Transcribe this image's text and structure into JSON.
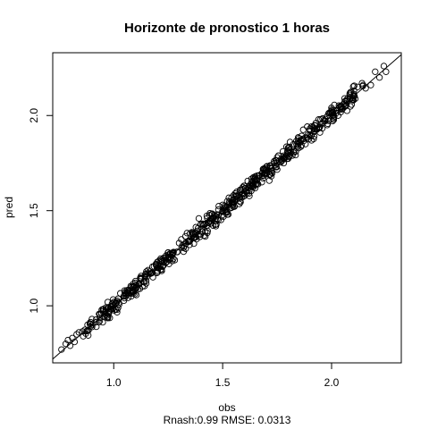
{
  "chart_data": {
    "type": "scatter",
    "title": "Horizonte de pronostico 1 horas",
    "xlabel": "obs",
    "ylabel": "pred",
    "subtitle": "Rnash:0.99 RMSE: 0.0313",
    "xlim": [
      0.72,
      2.32
    ],
    "ylim": [
      0.7,
      2.33
    ],
    "xticks": [
      1.0,
      1.5,
      2.0
    ],
    "xtick_labels": [
      "1.0",
      "1.5",
      "2.0"
    ],
    "yticks": [
      1.0,
      1.5,
      2.0
    ],
    "ytick_labels": [
      "1.0",
      "1.5",
      "2.0"
    ],
    "reference_line": {
      "slope": 1,
      "intercept": 0
    },
    "grid": false,
    "point_count": 600,
    "x_range_of_points": [
      0.76,
      2.25
    ],
    "rmse": 0.0313,
    "points": [
      [
        0.76,
        0.77
      ],
      [
        0.78,
        0.8
      ],
      [
        0.79,
        0.82
      ],
      [
        0.8,
        0.79
      ],
      [
        0.81,
        0.83
      ],
      [
        0.82,
        0.81
      ],
      [
        0.83,
        0.85
      ],
      [
        0.84,
        0.86
      ],
      [
        0.86,
        0.84
      ],
      [
        0.88,
        0.9
      ],
      [
        0.9,
        0.93
      ],
      [
        0.92,
        0.89
      ],
      [
        0.95,
        0.97
      ],
      [
        0.97,
        0.94
      ],
      [
        1.0,
        1.02
      ],
      [
        1.02,
        0.99
      ],
      [
        1.05,
        1.08
      ],
      [
        1.08,
        1.05
      ],
      [
        1.1,
        1.13
      ],
      [
        1.12,
        1.09
      ],
      [
        1.15,
        1.18
      ],
      [
        1.18,
        1.15
      ],
      [
        1.2,
        1.23
      ],
      [
        1.22,
        1.19
      ],
      [
        1.25,
        1.28
      ],
      [
        1.28,
        1.24
      ],
      [
        1.3,
        1.33
      ],
      [
        1.33,
        1.3
      ],
      [
        1.35,
        1.38
      ],
      [
        1.38,
        1.35
      ],
      [
        1.4,
        1.43
      ],
      [
        1.42,
        1.39
      ],
      [
        1.45,
        1.48
      ],
      [
        1.48,
        1.45
      ],
      [
        1.5,
        1.53
      ],
      [
        1.52,
        1.49
      ],
      [
        1.55,
        1.58
      ],
      [
        1.58,
        1.55
      ],
      [
        1.6,
        1.63
      ],
      [
        1.62,
        1.59
      ],
      [
        1.65,
        1.68
      ],
      [
        1.68,
        1.65
      ],
      [
        1.7,
        1.73
      ],
      [
        1.72,
        1.69
      ],
      [
        1.75,
        1.78
      ],
      [
        1.78,
        1.75
      ],
      [
        1.8,
        1.83
      ],
      [
        1.82,
        1.79
      ],
      [
        1.85,
        1.88
      ],
      [
        1.88,
        1.85
      ],
      [
        1.9,
        1.93
      ],
      [
        1.92,
        1.89
      ],
      [
        1.95,
        1.98
      ],
      [
        1.98,
        1.95
      ],
      [
        2.0,
        2.03
      ],
      [
        2.03,
        2.0
      ],
      [
        2.06,
        2.09
      ],
      [
        2.1,
        2.08
      ],
      [
        2.14,
        2.17
      ],
      [
        2.18,
        2.16
      ],
      [
        2.2,
        2.23
      ],
      [
        2.22,
        2.2
      ],
      [
        2.24,
        2.26
      ],
      [
        2.25,
        2.23
      ]
    ]
  }
}
